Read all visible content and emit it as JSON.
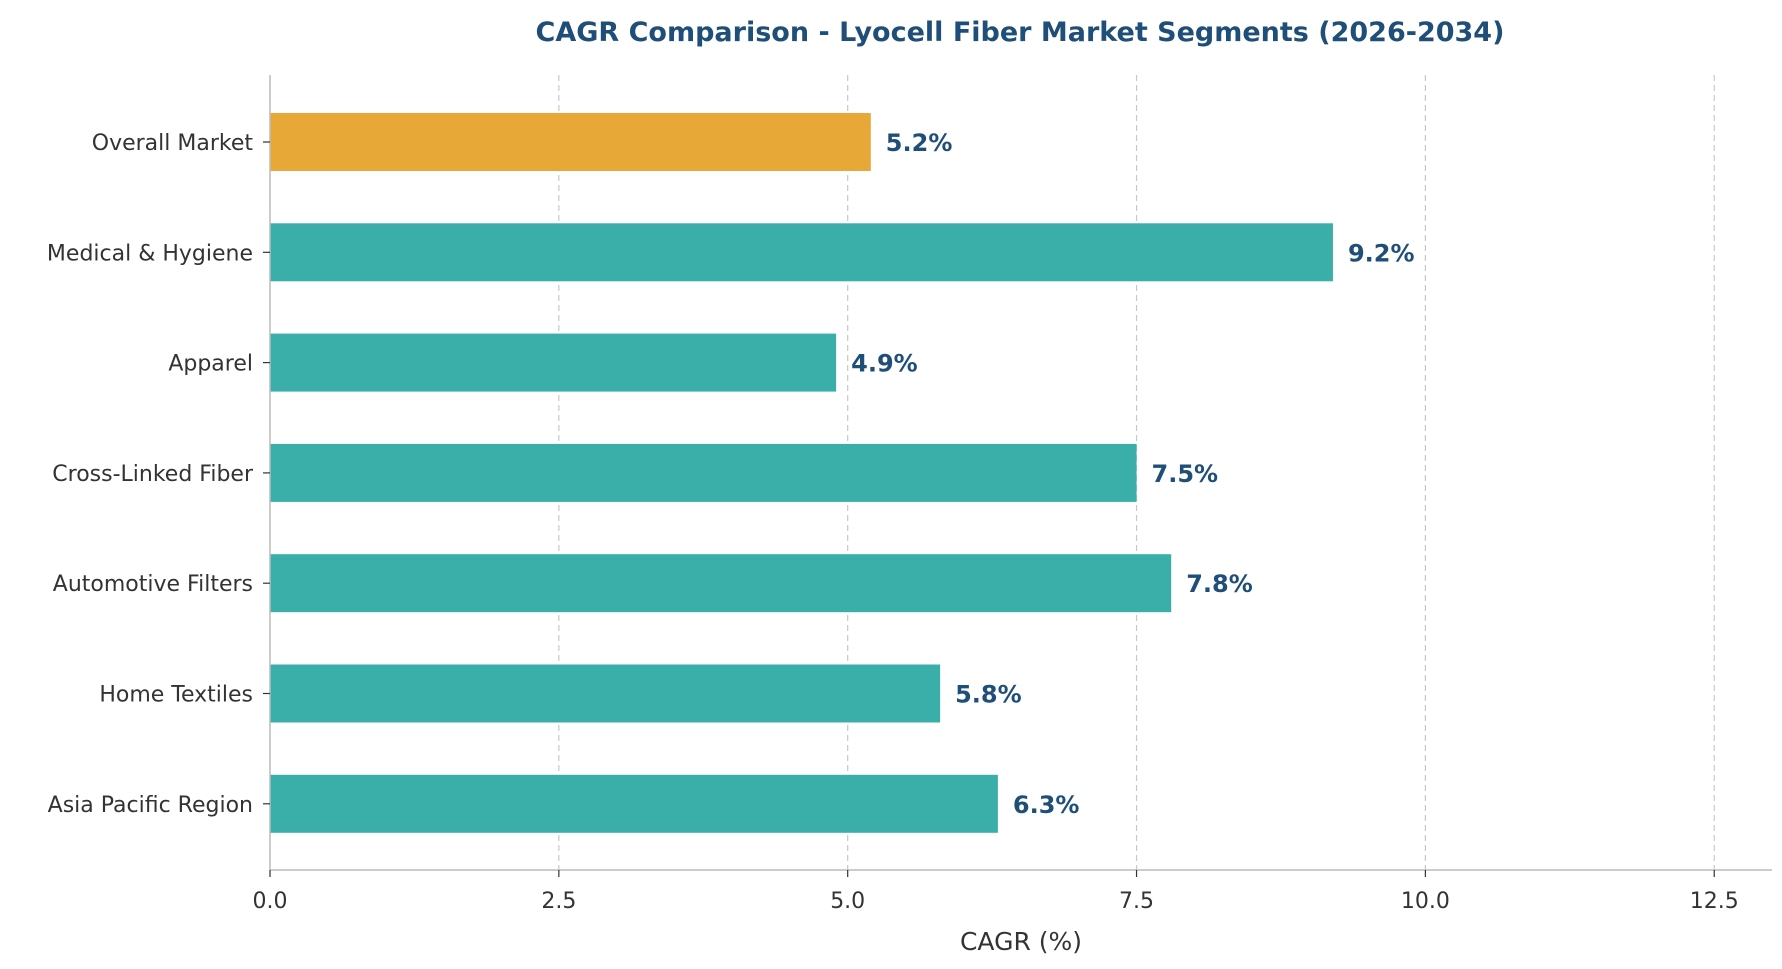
{
  "chart_data": {
    "type": "bar",
    "orientation": "horizontal",
    "title": "CAGR Comparison - Lyocell Fiber Market Segments (2026-2034)",
    "xlabel": "CAGR (%)",
    "ylabel": "",
    "xlim": [
      0,
      13.0
    ],
    "xticks": [
      0.0,
      2.5,
      5.0,
      7.5,
      10.0,
      12.5
    ],
    "xtick_labels": [
      "0.0",
      "2.5",
      "5.0",
      "7.5",
      "10.0",
      "12.5"
    ],
    "grid": "x-dashed",
    "categories": [
      "Overall Market",
      "Medical & Hygiene",
      "Apparel",
      "Cross-Linked Fiber",
      "Automotive Filters",
      "Home Textiles",
      "Asia Pacific Region"
    ],
    "values": [
      5.2,
      9.2,
      4.9,
      7.5,
      7.8,
      5.8,
      6.3
    ],
    "data_labels": [
      "5.2%",
      "9.2%",
      "4.9%",
      "7.5%",
      "7.8%",
      "5.8%",
      "6.3%"
    ],
    "colors": {
      "highlight": "#E8A838",
      "default": "#3AAFA9",
      "title": "#1F4E79",
      "data_label": "#1F4E79",
      "tick_text": "#333333",
      "axis_line": "#BBBBBB",
      "grid": "#C8C8C8"
    },
    "highlight_index": 0
  }
}
